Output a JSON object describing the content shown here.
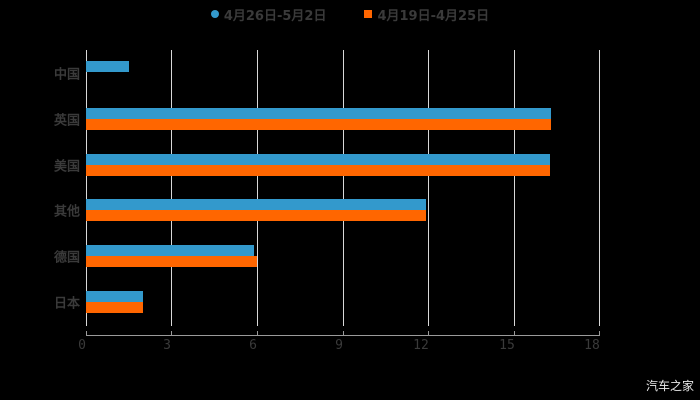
{
  "chart_data": {
    "type": "bar",
    "orientation": "horizontal",
    "title": "",
    "categories": [
      "中国",
      "英国",
      "美国",
      "其他",
      "德国",
      "日本"
    ],
    "series": [
      {
        "name": "4月26日-5月2日",
        "color": "#3399cc",
        "values": [
          1.5,
          16.3,
          16.25,
          11.9,
          5.9,
          2.0
        ]
      },
      {
        "name": "4月19日-4月25日",
        "color": "#ff6600",
        "values": [
          0,
          16.3,
          16.25,
          11.9,
          6.0,
          2.0
        ]
      }
    ],
    "xlabel": "",
    "ylabel": "",
    "xlim": [
      0,
      18
    ],
    "xticks": [
      "0",
      "3",
      "6",
      "9",
      "12",
      "15",
      "18"
    ],
    "grid": "vertical",
    "legend_position": "top"
  },
  "legend": {
    "series1": "4月26日-5月2日",
    "series2": "4月19日-4月25日"
  },
  "axis": {
    "ticks": [
      "0",
      "3",
      "6",
      "9",
      "12",
      "15",
      "18"
    ]
  },
  "categories": [
    "中国",
    "英国",
    "美国",
    "其他",
    "德国",
    "日本"
  ],
  "watermark": "汽车之家"
}
